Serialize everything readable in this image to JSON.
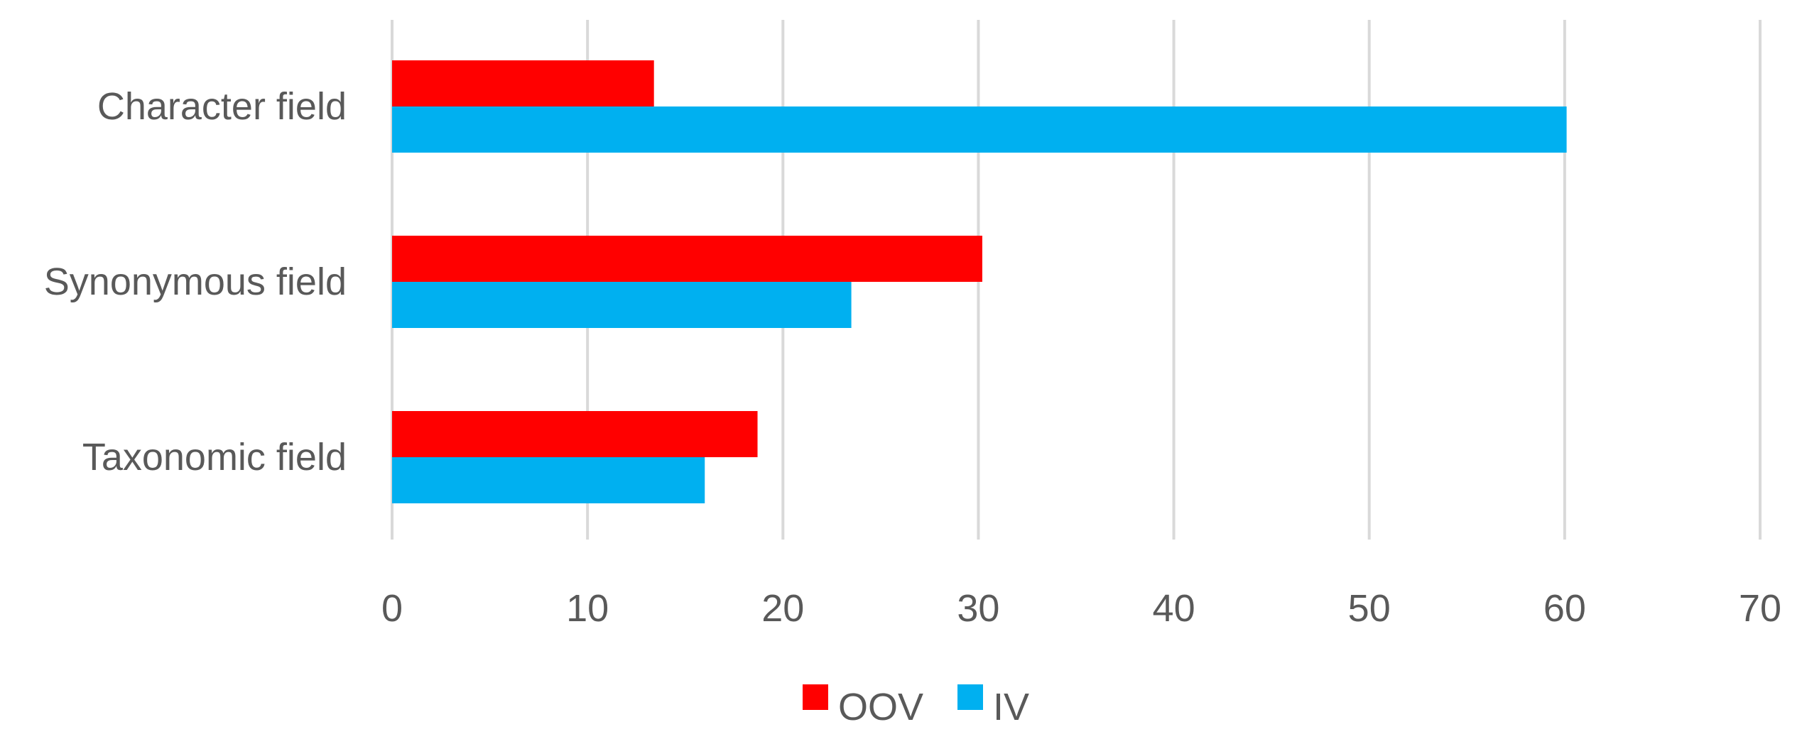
{
  "chart_data": {
    "type": "bar",
    "orientation": "horizontal",
    "title": "",
    "xlabel": "",
    "ylabel": "",
    "categories": [
      "Character field",
      "Synonymous field",
      "Taxonomic field"
    ],
    "series": [
      {
        "name": "OOV",
        "color": "#ff0000",
        "values": [
          13.4,
          30.2,
          18.7
        ]
      },
      {
        "name": "IV",
        "color": "#00b0f0",
        "values": [
          60.1,
          23.5,
          16.0
        ]
      }
    ],
    "xlim": [
      0,
      70
    ],
    "xticks": [
      0,
      10,
      20,
      30,
      40,
      50,
      60,
      70
    ],
    "grid": true,
    "legend_position": "bottom-center"
  }
}
